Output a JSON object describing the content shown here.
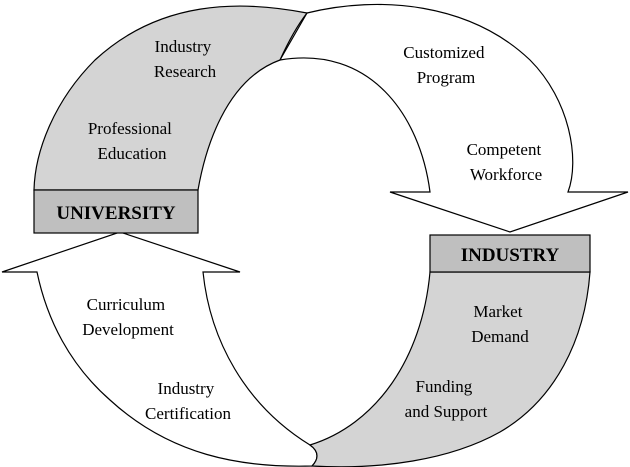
{
  "colors": {
    "fill_gray": "#d4d4d4",
    "box_gray": "#bfbfbf",
    "stroke": "#000000",
    "background": "#ffffff"
  },
  "university": {
    "label": "UNIVERSITY",
    "items": [
      [
        "Industry",
        "Research"
      ],
      [
        "Professional",
        "Education"
      ]
    ]
  },
  "industry": {
    "label": "INDUSTRY",
    "items": [
      [
        "Market",
        "Demand"
      ],
      [
        "Funding",
        "and Support"
      ]
    ]
  },
  "university_to_industry": {
    "items": [
      [
        "Customized",
        "Program"
      ],
      [
        "Competent",
        "Workforce"
      ]
    ]
  },
  "industry_to_university": {
    "items": [
      [
        "Curriculum",
        "Development"
      ],
      [
        "Industry",
        "Certification"
      ]
    ]
  }
}
